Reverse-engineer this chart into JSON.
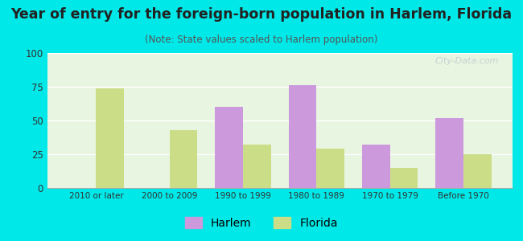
{
  "title": "Year of entry for the foreign-born population in Harlem, Florida",
  "subtitle": "(Note: State values scaled to Harlem population)",
  "categories": [
    "2010 or later",
    "2000 to 2009",
    "1990 to 1999",
    "1980 to 1989",
    "1970 to 1979",
    "Before 1970"
  ],
  "harlem_values": [
    0,
    0,
    60,
    76,
    32,
    52
  ],
  "florida_values": [
    74,
    43,
    32,
    29,
    15,
    25
  ],
  "harlem_color": "#cc99dd",
  "florida_color": "#ccdd88",
  "background_outer": "#00e8e8",
  "background_inner": "#e8f5e0",
  "ylim": [
    0,
    100
  ],
  "yticks": [
    0,
    25,
    50,
    75,
    100
  ],
  "bar_width": 0.38,
  "legend_harlem": "Harlem",
  "legend_florida": "Florida",
  "title_fontsize": 12.5,
  "subtitle_fontsize": 8.5,
  "title_color": "#222222",
  "subtitle_color": "#555555",
  "watermark": "City-Data.com"
}
